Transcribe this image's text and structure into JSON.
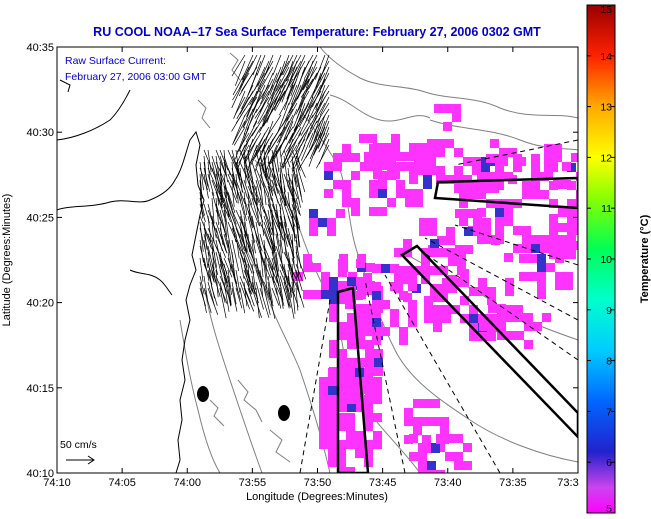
{
  "chart_data": {
    "type": "heatmap",
    "title": "RU COOL  NOAA–17  Sea Surface Temperature:  February 27, 2006 0302 GMT",
    "inset_label_1": "Raw Surface Current:",
    "inset_label_2": "February 27, 2006 03:00 GMT",
    "xlabel": "Longitude (Degrees:Minutes)",
    "ylabel": "Latitude (Degrees:Minutes)",
    "colorbar_label": "Temperature (°C)",
    "x_tick_labels": [
      "74:10",
      "74:05",
      "74:00",
      "73:55",
      "73:50",
      "73:45",
      "73:40",
      "73:35",
      "73:3"
    ],
    "y_tick_labels": [
      "40:35",
      "40:30",
      "40:25",
      "40:20",
      "40:15",
      "40:10"
    ],
    "colorbar_ticks": [
      "15",
      "14",
      "13",
      "12",
      "11",
      "10",
      "9",
      "8",
      "7",
      "6",
      "5"
    ],
    "colorbar_range": [
      5,
      15
    ],
    "scale_vector_label": "50 cm/s",
    "grid": false,
    "colors": {
      "title": "#0000cc",
      "sst_dominant": "#ff33ff",
      "sst_cool": "#3333cc",
      "contour": "#808080",
      "coast": "#000000"
    }
  }
}
